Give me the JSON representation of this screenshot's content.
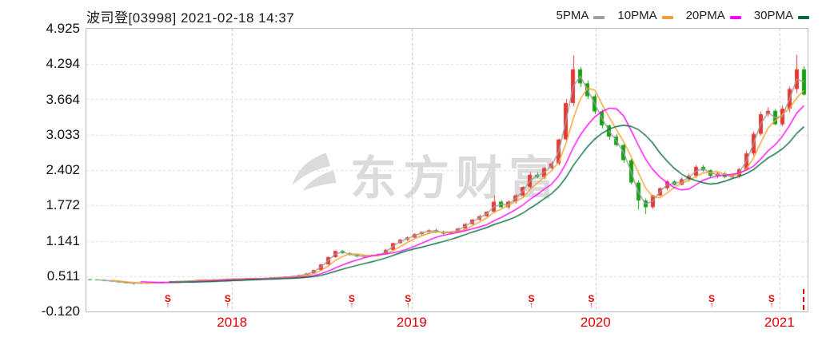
{
  "header": {
    "title": "波司登[03998] 2021-02-18 14:37",
    "legend": [
      {
        "label": "5PMA",
        "color": "#9e9e9e",
        "window": 5
      },
      {
        "label": "10PMA",
        "color": "#f0a030",
        "window": 10
      },
      {
        "label": "20PMA",
        "color": "#ff00ff",
        "window": 20
      },
      {
        "label": "30PMA",
        "color": "#066a3a",
        "window": 30
      }
    ]
  },
  "chart_data": {
    "type": "candlestick",
    "title": "波司登[03998] 2021-02-18 14:37",
    "symbol": "波司登",
    "code": "03998",
    "as_of": "2021-02-18 14:37",
    "ylim": [
      -0.12,
      4.925
    ],
    "y_ticks": [
      "4.925",
      "4.294",
      "3.664",
      "3.033",
      "2.402",
      "1.772",
      "1.141",
      "0.511",
      "-0.120"
    ],
    "x_ticks": [
      {
        "label": "2018",
        "pos": 0.202
      },
      {
        "label": "2019",
        "pos": 0.451
      },
      {
        "label": "2020",
        "pos": 0.706
      },
      {
        "label": "2021",
        "pos": 0.961
      }
    ],
    "series": [
      {
        "name": "close",
        "values": [
          0.45,
          0.44,
          0.43,
          0.42,
          0.4,
          0.39,
          0.38,
          0.39,
          0.39,
          0.4,
          0.4,
          0.41,
          0.42,
          0.42,
          0.43,
          0.44,
          0.45,
          0.44,
          0.45,
          0.46,
          0.46,
          0.46,
          0.47,
          0.47,
          0.47,
          0.48,
          0.49,
          0.5,
          0.51,
          0.53,
          0.56,
          0.62,
          0.72,
          0.85,
          0.96,
          0.92,
          0.89,
          0.86,
          0.87,
          0.88,
          0.9,
          0.98,
          1.1,
          1.16,
          1.2,
          1.26,
          1.3,
          1.33,
          1.3,
          1.27,
          1.3,
          1.36,
          1.44,
          1.52,
          1.58,
          1.66,
          1.84,
          1.74,
          1.84,
          1.95,
          2.1,
          2.32,
          2.28,
          2.44,
          2.52,
          2.95,
          3.6,
          4.2,
          3.95,
          3.72,
          3.45,
          3.2,
          3.0,
          2.85,
          2.58,
          2.18,
          1.86,
          1.74,
          1.95,
          2.08,
          2.2,
          2.14,
          2.24,
          2.3,
          2.46,
          2.4,
          2.3,
          2.34,
          2.28,
          2.3,
          2.42,
          2.7,
          3.05,
          3.4,
          3.46,
          3.22,
          3.5,
          3.85,
          4.2,
          3.75
        ]
      }
    ],
    "spike_highs": {
      "56": 1.95,
      "67": 4.45,
      "98": 4.46
    },
    "spike_lows": {
      "6": 0.36,
      "76": 1.7,
      "77": 1.62
    },
    "ma_windows": [
      5,
      10,
      20,
      30
    ],
    "event_markers": {
      "glyph": "S",
      "arrow": "↑",
      "color": "#e60000",
      "positions": [
        0.113,
        0.196,
        0.368,
        0.446,
        0.617,
        0.7,
        0.867,
        0.95
      ]
    },
    "right_event_line_pos": 0.993,
    "watermark": "东方财富",
    "colors": {
      "up": "#e53935",
      "down": "#15a215",
      "axis_label": "#111111",
      "year_label": "#e60000",
      "grid_h": "#dcdcdc",
      "grid_v": "#c4c4c4",
      "border": "#b5bdc6",
      "marker": "#e60000",
      "watermark": "#8a8a8a"
    },
    "grid": {
      "vertical_dashed": true,
      "horizontal_dashed": true
    },
    "legend_position": "top-right"
  }
}
